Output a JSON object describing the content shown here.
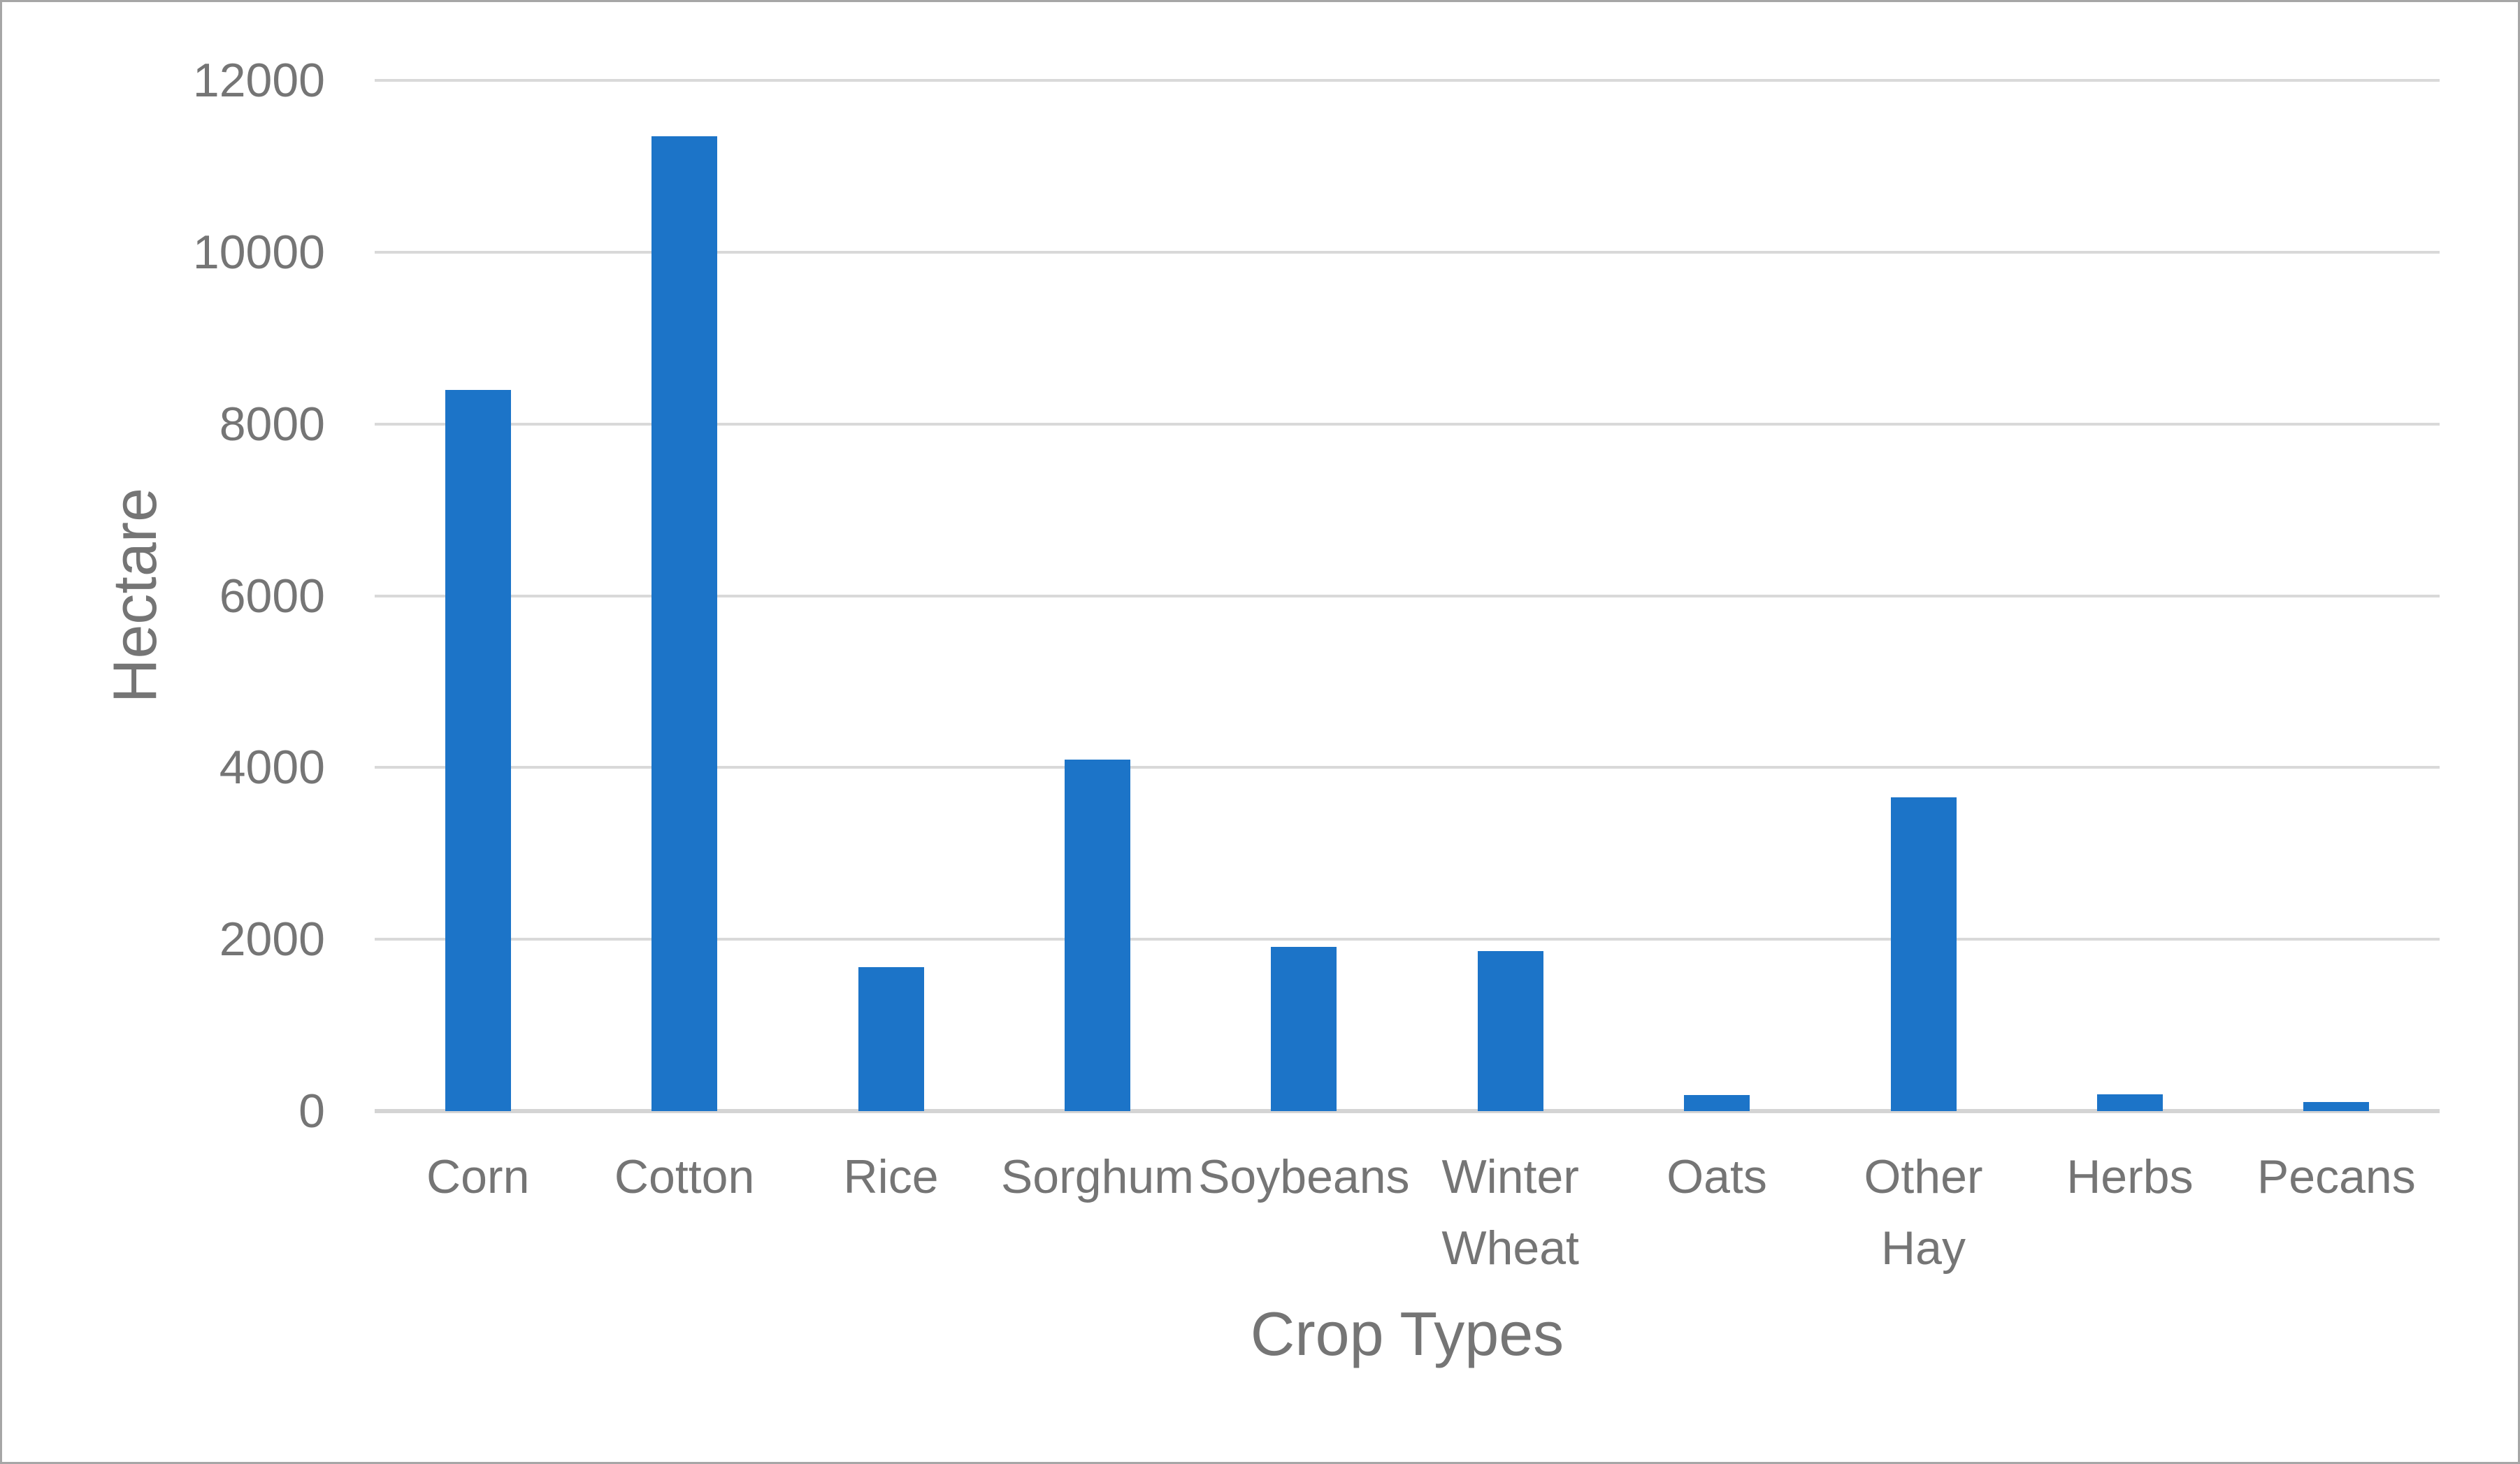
{
  "figure": {
    "background": "#ffffff",
    "border_color": "#a6a6a6"
  },
  "chart_data": {
    "type": "bar",
    "title": "",
    "categories": [
      "Corn",
      "Cotton",
      "Rice",
      "Sorghum",
      "Soybeans",
      "Winter Wheat",
      "Oats",
      "Other Hay",
      "Herbs",
      "Pecans"
    ],
    "category_label_lines": [
      [
        "Corn"
      ],
      [
        "Cotton"
      ],
      [
        "Rice"
      ],
      [
        "Sorghum"
      ],
      [
        "Soybeans"
      ],
      [
        "Winter",
        "Wheat"
      ],
      [
        "Oats"
      ],
      [
        "Other",
        "Hay"
      ],
      [
        "Herbs"
      ],
      [
        "Pecans"
      ]
    ],
    "values": [
      8400,
      11350,
      1680,
      4090,
      1910,
      1860,
      185,
      3650,
      195,
      105
    ],
    "series_name": "Hectare",
    "xlabel": "Crop Types",
    "ylabel": "Hectare",
    "ylim": [
      0,
      12000
    ],
    "ytick_interval": 2000,
    "yticks": [
      0,
      2000,
      4000,
      6000,
      8000,
      10000,
      12000
    ],
    "grid": true,
    "legend": false,
    "bar_color": "#1c74c8",
    "gridline_color": "#d9d9d9",
    "axis_line_color": "#d4d4d4",
    "text_color": "#757575"
  }
}
